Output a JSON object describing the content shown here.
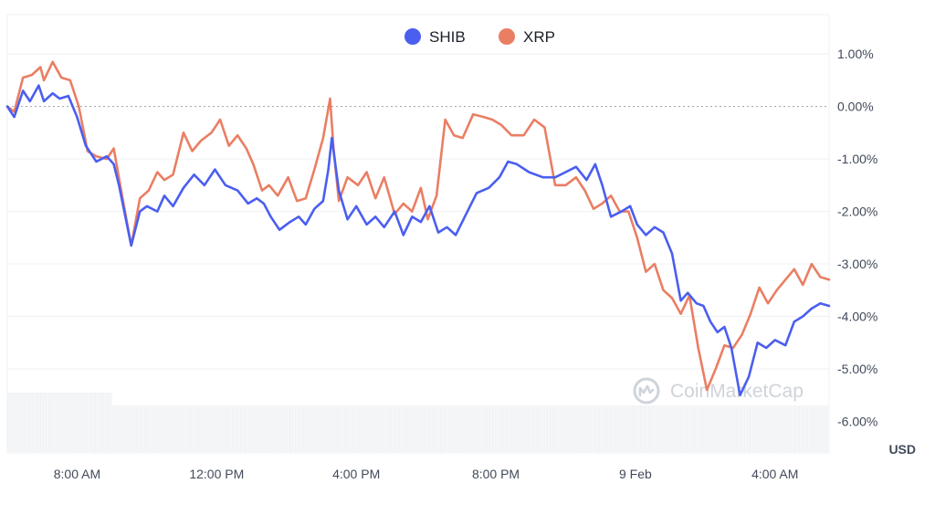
{
  "colors": {
    "shib": "#4a5ef0",
    "xrp": "#ea7e63",
    "grid": "#eef0f3",
    "zero_line": "#9aa0aa",
    "volume": "#f1f2f4",
    "watermark": "#cfd3da"
  },
  "watermark": {
    "text": "CoinMarketCap",
    "icon": "coinmarketcap-logo-icon"
  },
  "chart_data": {
    "type": "line",
    "legend_position": "top-center",
    "grid": true,
    "unit": "USD",
    "ylim": [
      -6.6,
      1.75
    ],
    "xlim": [
      6.0,
      29.55
    ],
    "y_ticks": [
      1,
      0,
      -1,
      -2,
      -3,
      -4,
      -5,
      -6
    ],
    "y_tick_labels": [
      "1.00%",
      "0.00%",
      "-1.00%",
      "-2.00%",
      "-3.00%",
      "-4.00%",
      "-5.00%",
      "-6.00%"
    ],
    "x_ticks": [
      8,
      12,
      16,
      20,
      24,
      28
    ],
    "x_tick_labels": [
      "8:00 AM",
      "12:00 PM",
      "4:00 PM",
      "8:00 PM",
      "9 Feb",
      "4:00 AM"
    ],
    "series": [
      {
        "name": "SHIB",
        "color": "#4a5ef0",
        "x": [
          6.0,
          6.2,
          6.45,
          6.65,
          6.9,
          7.05,
          7.3,
          7.5,
          7.75,
          8.0,
          8.25,
          8.55,
          8.85,
          9.05,
          9.2,
          9.55,
          9.8,
          10.0,
          10.3,
          10.5,
          10.75,
          11.05,
          11.35,
          11.65,
          11.95,
          12.25,
          12.6,
          12.9,
          13.15,
          13.35,
          13.55,
          13.8,
          14.1,
          14.35,
          14.55,
          14.8,
          15.05,
          15.2,
          15.3,
          15.5,
          15.75,
          16.0,
          16.3,
          16.55,
          16.8,
          17.1,
          17.35,
          17.6,
          17.85,
          18.1,
          18.35,
          18.6,
          18.85,
          19.15,
          19.45,
          19.8,
          20.1,
          20.35,
          20.6,
          20.95,
          21.35,
          21.7,
          22.0,
          22.3,
          22.6,
          22.85,
          23.05,
          23.3,
          23.6,
          23.85,
          24.05,
          24.3,
          24.55,
          24.8,
          25.05,
          25.3,
          25.5,
          25.75,
          25.95,
          26.15,
          26.35,
          26.55,
          26.75,
          27.0,
          27.25,
          27.5,
          27.75,
          28.0,
          28.3,
          28.55,
          28.8,
          29.05,
          29.3,
          29.55
        ],
        "values": [
          0.0,
          -0.2,
          0.3,
          0.1,
          0.4,
          0.1,
          0.25,
          0.15,
          0.2,
          -0.2,
          -0.75,
          -1.05,
          -0.95,
          -1.1,
          -1.5,
          -2.65,
          -2.0,
          -1.9,
          -2.0,
          -1.7,
          -1.9,
          -1.55,
          -1.3,
          -1.5,
          -1.2,
          -1.5,
          -1.6,
          -1.85,
          -1.75,
          -1.85,
          -2.1,
          -2.35,
          -2.2,
          -2.1,
          -2.25,
          -1.95,
          -1.8,
          -1.2,
          -0.6,
          -1.6,
          -2.15,
          -1.9,
          -2.25,
          -2.1,
          -2.3,
          -2.0,
          -2.45,
          -2.1,
          -2.2,
          -1.9,
          -2.4,
          -2.3,
          -2.45,
          -2.05,
          -1.65,
          -1.55,
          -1.35,
          -1.05,
          -1.1,
          -1.25,
          -1.35,
          -1.35,
          -1.25,
          -1.15,
          -1.4,
          -1.1,
          -1.5,
          -2.1,
          -2.0,
          -1.9,
          -2.25,
          -2.45,
          -2.3,
          -2.4,
          -2.8,
          -3.7,
          -3.55,
          -3.75,
          -3.8,
          -4.1,
          -4.3,
          -4.2,
          -4.6,
          -5.5,
          -5.15,
          -4.5,
          -4.6,
          -4.45,
          -4.55,
          -4.1,
          -4.0,
          -3.85,
          -3.75,
          -3.8
        ]
      },
      {
        "name": "XRP",
        "color": "#ea7e63",
        "x": [
          6.0,
          6.2,
          6.45,
          6.7,
          6.95,
          7.05,
          7.3,
          7.55,
          7.8,
          8.05,
          8.3,
          8.55,
          8.85,
          9.05,
          9.25,
          9.55,
          9.8,
          10.05,
          10.3,
          10.5,
          10.75,
          11.05,
          11.3,
          11.55,
          11.85,
          12.1,
          12.35,
          12.6,
          12.85,
          13.05,
          13.3,
          13.5,
          13.75,
          14.05,
          14.3,
          14.55,
          14.8,
          15.05,
          15.25,
          15.35,
          15.5,
          15.75,
          16.05,
          16.3,
          16.55,
          16.8,
          17.1,
          17.35,
          17.6,
          17.85,
          18.05,
          18.3,
          18.55,
          18.8,
          19.05,
          19.35,
          19.65,
          19.9,
          20.15,
          20.45,
          20.8,
          21.1,
          21.4,
          21.7,
          22.0,
          22.3,
          22.55,
          22.8,
          23.05,
          23.3,
          23.55,
          23.8,
          24.05,
          24.3,
          24.55,
          24.8,
          25.05,
          25.3,
          25.55,
          25.8,
          26.05,
          26.3,
          26.55,
          26.8,
          27.05,
          27.3,
          27.55,
          27.8,
          28.05,
          28.3,
          28.55,
          28.8,
          29.05,
          29.3,
          29.55
        ],
        "values": [
          0.0,
          -0.1,
          0.55,
          0.6,
          0.75,
          0.5,
          0.85,
          0.55,
          0.5,
          0.0,
          -0.85,
          -0.95,
          -1.0,
          -0.8,
          -1.55,
          -2.65,
          -1.75,
          -1.6,
          -1.25,
          -1.4,
          -1.3,
          -0.5,
          -0.85,
          -0.65,
          -0.5,
          -0.25,
          -0.75,
          -0.55,
          -0.8,
          -1.1,
          -1.6,
          -1.5,
          -1.7,
          -1.35,
          -1.8,
          -1.75,
          -1.2,
          -0.6,
          0.15,
          -0.8,
          -1.8,
          -1.35,
          -1.5,
          -1.25,
          -1.75,
          -1.35,
          -2.05,
          -1.85,
          -2.0,
          -1.55,
          -2.15,
          -1.7,
          -0.25,
          -0.55,
          -0.6,
          -0.15,
          -0.2,
          -0.25,
          -0.35,
          -0.55,
          -0.55,
          -0.25,
          -0.4,
          -1.5,
          -1.5,
          -1.35,
          -1.6,
          -1.95,
          -1.85,
          -1.7,
          -2.0,
          -2.0,
          -2.5,
          -3.15,
          -3.0,
          -3.5,
          -3.65,
          -3.95,
          -3.6,
          -4.6,
          -5.4,
          -5.0,
          -4.55,
          -4.6,
          -4.35,
          -3.95,
          -3.45,
          -3.75,
          -3.5,
          -3.3,
          -3.1,
          -3.4,
          -3.0,
          -3.25,
          -3.3
        ]
      }
    ]
  }
}
